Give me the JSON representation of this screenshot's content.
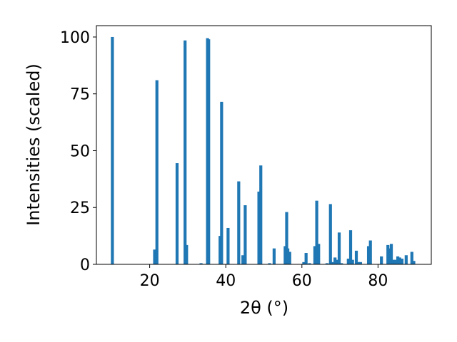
{
  "chart_data": {
    "type": "bar",
    "title": "",
    "xlabel": "2θ (°)",
    "ylabel": "Intensities (scaled)",
    "xlim": [
      6,
      94
    ],
    "ylim": [
      0,
      105
    ],
    "xticks": [
      20,
      40,
      60,
      80
    ],
    "yticks": [
      0,
      25,
      50,
      75,
      100
    ],
    "grid": false,
    "bar_color": "#1f77b4",
    "x": [
      10.2,
      21.3,
      21.9,
      27.2,
      29.3,
      29.7,
      33.5,
      35.2,
      35.5,
      38.5,
      38.9,
      40.6,
      43.4,
      44.5,
      45.1,
      48.7,
      49.2,
      51.5,
      52.7,
      55.6,
      56.0,
      56.3,
      56.8,
      60.5,
      61.1,
      62.0,
      63.4,
      63.9,
      64.4,
      66.6,
      67.5,
      67.9,
      68.7,
      69.3,
      69.8,
      70.4,
      72.2,
      72.8,
      73.3,
      74.3,
      74.9,
      75.4,
      77.5,
      78.0,
      80.9,
      82.6,
      83.1,
      83.5,
      84.0,
      84.6,
      85.2,
      85.7,
      86.3,
      87.4,
      88.9,
      89.4
    ],
    "values": [
      100,
      6.5,
      81,
      44.5,
      98.5,
      8.5,
      0.5,
      99.5,
      99,
      12.5,
      71.5,
      16,
      36.5,
      4,
      26,
      32,
      43.5,
      0.5,
      7,
      8,
      23,
      7,
      5.5,
      1,
      5,
      0.5,
      8,
      28,
      9,
      0.5,
      26.5,
      1,
      3,
      2,
      14,
      0.5,
      2.5,
      15,
      2,
      6,
      1,
      1,
      8,
      10.5,
      3.5,
      8.5,
      7,
      9,
      2,
      2,
      3.5,
      3,
      2.5,
      4,
      5.5,
      1.5
    ]
  }
}
